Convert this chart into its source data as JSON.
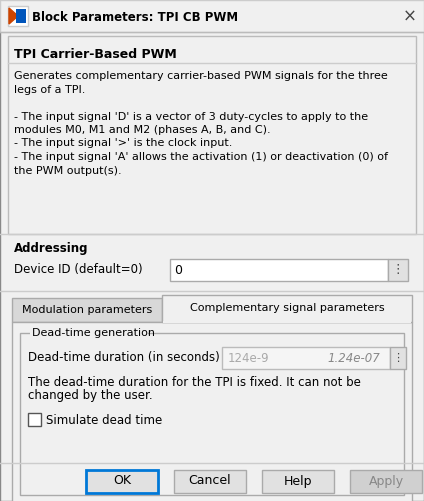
{
  "title": "Block Parameters: TPI CB PWM",
  "bg_color": "#f0f0f0",
  "white": "#ffffff",
  "dark_border": "#aaaaaa",
  "blue_border": "#0078d7",
  "light_gray": "#e1e1e1",
  "medium_gray": "#d0d0d0",
  "tab_gray": "#d8d8d8",
  "text_color": "#000000",
  "gray_text": "#aaaaaa",
  "input_bg": "#f5f5f5",
  "block_title": "TPI Carrier-Based PWM",
  "desc_lines": [
    "Generates complementary carrier-based PWM signals for the three",
    "legs of a TPI.",
    "",
    "- The input signal 'D' is a vector of 3 duty-cycles to apply to the",
    "modules M0, M1 and M2 (phases A, B, and C).",
    "- The input signal '>' is the clock input.",
    "- The input signal 'A' allows the activation (1) or deactivation (0) of",
    "the PWM output(s)."
  ],
  "addressing_label": "Addressing",
  "device_id_label": "Device ID (default=0)",
  "device_id_value": "0",
  "tab1_label": "Modulation parameters",
  "tab2_label": "Complementary signal parameters",
  "group_label": "Dead-time generation",
  "deadtime_label": "Dead-time duration (in seconds)",
  "deadtime_val1": "124e-9",
  "deadtime_val2": "1.24e-07",
  "note_lines": [
    "The dead-time duration for the TPI is fixed. It can not be",
    "changed by the user."
  ],
  "checkbox_label": "Simulate dead time",
  "btn_ok": "OK",
  "btn_cancel": "Cancel",
  "btn_help": "Help",
  "btn_apply": "Apply"
}
